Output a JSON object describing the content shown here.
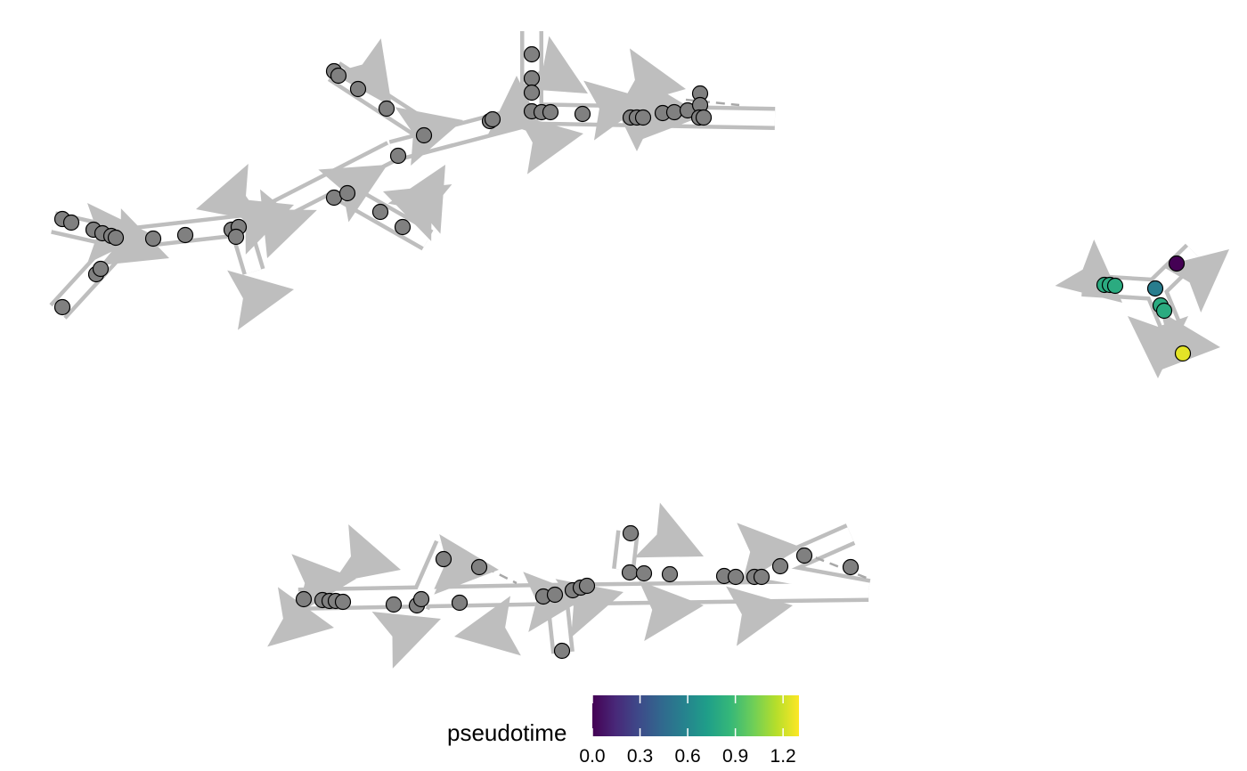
{
  "chart_data": {
    "type": "scatter",
    "title": "",
    "xlabel": "",
    "ylabel": "",
    "grid": false,
    "legend_position": "bottom",
    "colors": {
      "edge": "#bebebe",
      "edge_inner": "#ffffff",
      "arrow": "#bebebe",
      "unassigned_point": "#808080",
      "point_outline": "#000000",
      "dashed_edge": "#a8a8a8"
    },
    "colorbar": {
      "title": "pseudotime",
      "range": [
        0.0,
        1.3
      ],
      "ticks": [
        0.0,
        0.3,
        0.6,
        0.9,
        1.2
      ],
      "tick_labels": [
        "0.0",
        "0.3",
        "0.6",
        "0.9",
        "1.2"
      ],
      "palette": "viridis",
      "stops": [
        "#440154",
        "#482878",
        "#3e4989",
        "#31688e",
        "#26828e",
        "#1f9e89",
        "#35b779",
        "#6ece58",
        "#b5de2b",
        "#fde725"
      ]
    },
    "point_groups": [
      {
        "graph": "upper-left",
        "pseudotime": null
      },
      {
        "graph": "bottom",
        "pseudotime": null
      },
      {
        "graph": "right",
        "pseudotime": [
          0.0,
          0.55,
          0.8,
          0.8,
          0.8,
          0.8,
          0.8,
          1.25
        ]
      }
    ]
  }
}
